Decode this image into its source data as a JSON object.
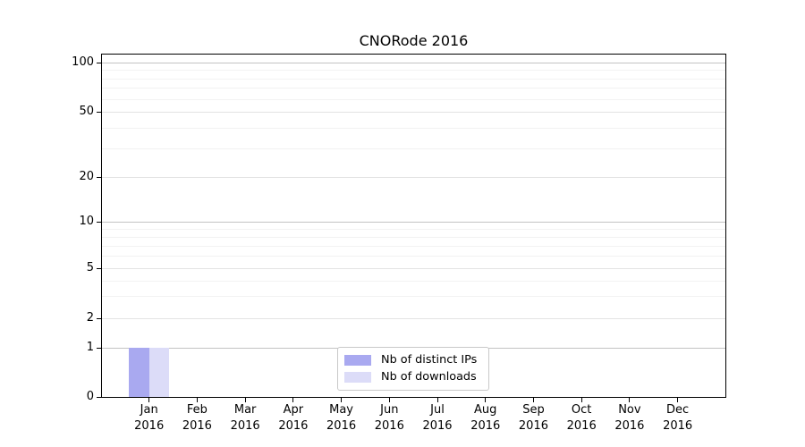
{
  "chart_data": {
    "type": "bar",
    "title": "CNORode 2016",
    "categories": [
      "Jan",
      "Feb",
      "Mar",
      "Apr",
      "May",
      "Jun",
      "Jul",
      "Aug",
      "Sep",
      "Oct",
      "Nov",
      "Dec"
    ],
    "year": "2016",
    "series": [
      {
        "name": "Nb of distinct IPs",
        "color": "#a9a9f0",
        "values": [
          1,
          0,
          0,
          0,
          0,
          0,
          0,
          0,
          0,
          0,
          0,
          0
        ]
      },
      {
        "name": "Nb of downloads",
        "color": "#dcdcf8",
        "values": [
          1,
          0,
          0,
          0,
          0,
          0,
          0,
          0,
          0,
          0,
          0,
          0
        ]
      }
    ],
    "xlabel": "",
    "ylabel": "",
    "y_ticks": [
      0,
      1,
      2,
      5,
      10,
      20,
      50,
      100
    ],
    "y_minor_gridlines": [
      3,
      4,
      6,
      7,
      8,
      9,
      30,
      40,
      60,
      70,
      80,
      90
    ],
    "yscale": "symlog",
    "ylim": [
      0,
      112
    ],
    "grid": true,
    "legend_position": "lower center inside plot",
    "axis_color": "#000000",
    "grid_color_decade": "#c3c3c3",
    "grid_color_major": "#e3e3e3",
    "grid_color_minor": "#f2f2f2"
  }
}
